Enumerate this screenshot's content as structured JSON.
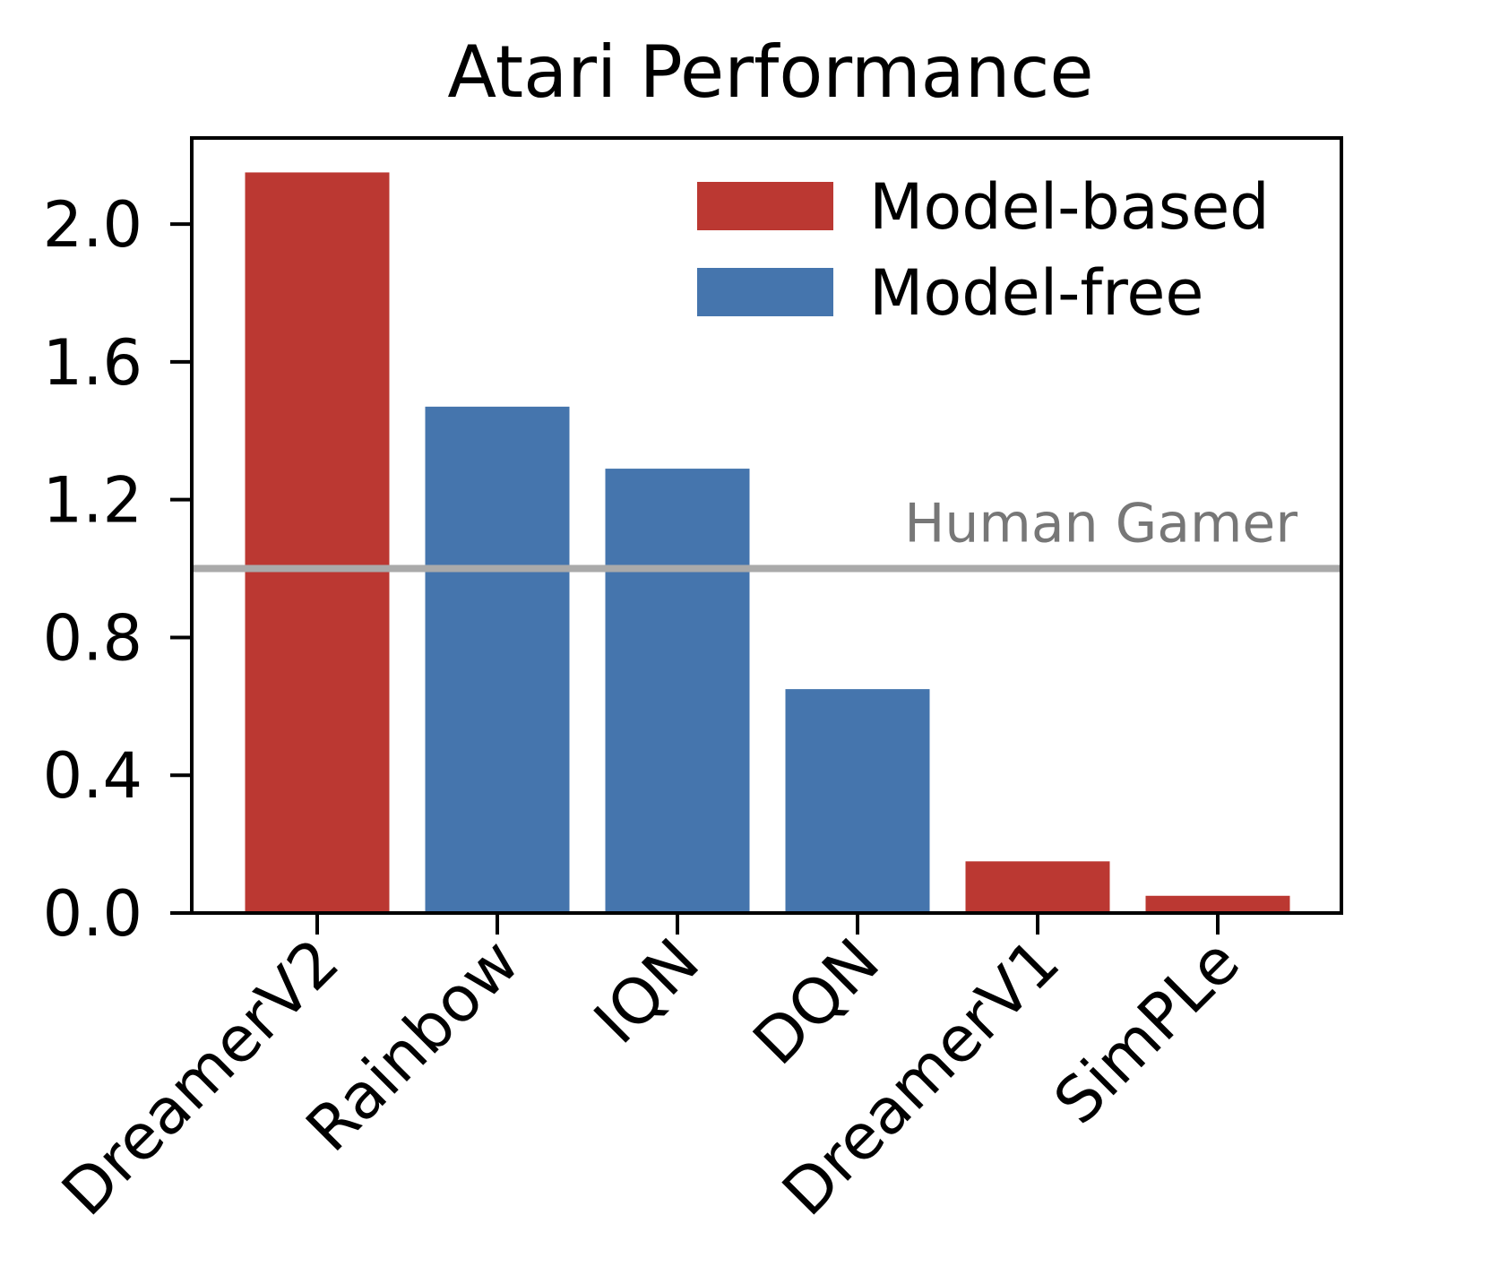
{
  "chart_data": {
    "type": "bar",
    "title": "Atari Performance",
    "xlabel": "",
    "ylabel": "",
    "categories": [
      "DreamerV2",
      "Rainbow",
      "IQN",
      "DQN",
      "DreamerV1",
      "SimPLe"
    ],
    "values": [
      2.15,
      1.47,
      1.29,
      0.65,
      0.15,
      0.05
    ],
    "groups": [
      "Model-based",
      "Model-free",
      "Model-free",
      "Model-free",
      "Model-based",
      "Model-based"
    ],
    "ylim": [
      0,
      2.25
    ],
    "yticks": [
      0.0,
      0.4,
      0.8,
      1.2,
      1.6,
      2.0
    ],
    "ytick_labels": [
      "0.0",
      "0.4",
      "0.8",
      "1.2",
      "1.6",
      "2.0"
    ],
    "grid": false,
    "legend": {
      "placement": "top-right",
      "entries": [
        {
          "label": "Model-based",
          "color": "#bb3832"
        },
        {
          "label": "Model-free",
          "color": "#4575ad"
        }
      ]
    },
    "reference_line": {
      "value": 1.0,
      "label": "Human Gamer",
      "color": "#aaaaaa",
      "label_color": "#777777"
    }
  }
}
